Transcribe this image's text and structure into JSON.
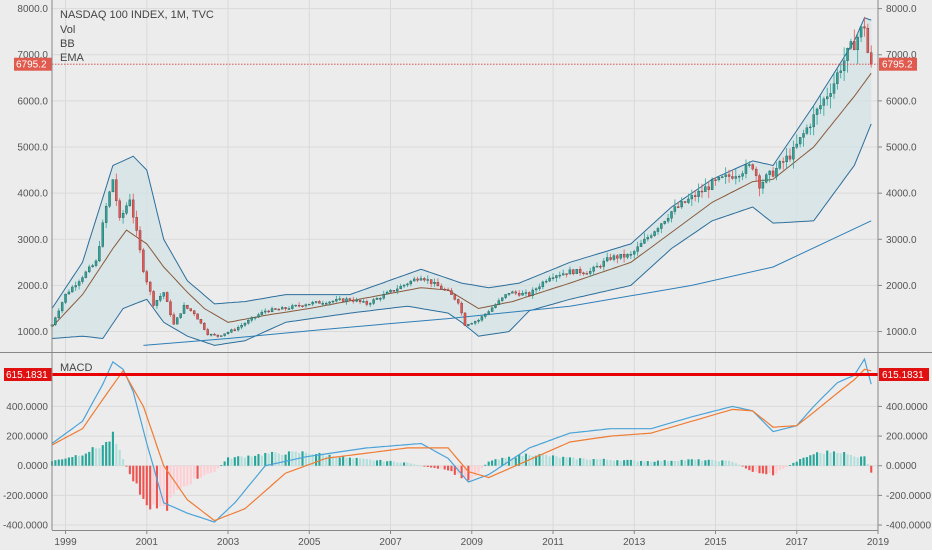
{
  "chart_data": [
    {
      "type": "candlestick",
      "title": "NASDAQ 100 INDEX, 1M, TVC",
      "legend": [
        "Vol",
        "BB",
        "EMA"
      ],
      "x_ticks": [
        "1999",
        "2001",
        "2003",
        "2005",
        "2007",
        "2009",
        "2011",
        "2013",
        "2015",
        "2017",
        "2019"
      ],
      "y_ticks": [
        "1000.0",
        "2000.0",
        "3000.0",
        "4000.0",
        "5000.0",
        "6000.0",
        "7000.0",
        "8000.0"
      ],
      "ylim": [
        600,
        8100
      ],
      "price_label": "6795.2",
      "price_value": 6795.2,
      "colors": {
        "up": "#26a69a",
        "down": "#ef5350",
        "ema": "#8b5a3c",
        "bb": "#2d6e9b",
        "bb_fill": "#d2e3e5",
        "long_ma": "#2d7fb8"
      },
      "candle_keypoints": [
        [
          "1998-09",
          1150
        ],
        [
          "1999-01",
          1800
        ],
        [
          "1999-06",
          2200
        ],
        [
          "1999-10",
          2500
        ],
        [
          "2000-01",
          3700
        ],
        [
          "2000-03",
          4300
        ],
        [
          "2000-05",
          3400
        ],
        [
          "2000-08",
          3900
        ],
        [
          "2000-12",
          2350
        ],
        [
          "2001-03",
          1600
        ],
        [
          "2001-06",
          1850
        ],
        [
          "2001-09",
          1150
        ],
        [
          "2001-12",
          1550
        ],
        [
          "2002-03",
          1400
        ],
        [
          "2002-07",
          950
        ],
        [
          "2002-10",
          900
        ],
        [
          "2003-03",
          1050
        ],
        [
          "2003-12",
          1450
        ],
        [
          "2004-06",
          1500
        ],
        [
          "2004-12",
          1600
        ],
        [
          "2006-01",
          1700
        ],
        [
          "2006-06",
          1600
        ],
        [
          "2007-10",
          2200
        ],
        [
          "2008-06",
          1850
        ],
        [
          "2008-09",
          1650
        ],
        [
          "2008-11",
          1150
        ],
        [
          "2009-03",
          1250
        ],
        [
          "2009-12",
          1850
        ],
        [
          "2010-06",
          1800
        ],
        [
          "2010-12",
          2200
        ],
        [
          "2011-06",
          2300
        ],
        [
          "2011-12",
          2300
        ],
        [
          "2012-06",
          2600
        ],
        [
          "2012-12",
          2650
        ],
        [
          "2013-12",
          3600
        ],
        [
          "2014-12",
          4200
        ],
        [
          "2015-06",
          4400
        ],
        [
          "2015-12",
          4600
        ],
        [
          "2016-02",
          4200
        ],
        [
          "2016-06",
          4450
        ],
        [
          "2016-12",
          4900
        ],
        [
          "2017-12",
          6400
        ],
        [
          "2018-02",
          6750
        ],
        [
          "2018-09",
          7650
        ],
        [
          "2018-10",
          7050
        ],
        [
          "2018-11",
          6795
        ]
      ],
      "bb_upper_keypoints": [
        [
          "1998-09",
          1500
        ],
        [
          "1999-06",
          2500
        ],
        [
          "2000-03",
          4600
        ],
        [
          "2000-09",
          4800
        ],
        [
          "2001-01",
          4500
        ],
        [
          "2001-06",
          3000
        ],
        [
          "2002-01",
          2100
        ],
        [
          "2002-09",
          1600
        ],
        [
          "2003-06",
          1650
        ],
        [
          "2004-06",
          1800
        ],
        [
          "2006-01",
          1800
        ],
        [
          "2007-10",
          2350
        ],
        [
          "2008-06",
          2150
        ],
        [
          "2008-10",
          2050
        ],
        [
          "2009-06",
          1950
        ],
        [
          "2010-03",
          2050
        ],
        [
          "2011-06",
          2500
        ],
        [
          "2012-12",
          2900
        ],
        [
          "2013-12",
          3700
        ],
        [
          "2014-12",
          4300
        ],
        [
          "2015-12",
          4700
        ],
        [
          "2016-06",
          4600
        ],
        [
          "2017-06",
          5900
        ],
        [
          "2018-06",
          7300
        ],
        [
          "2018-09",
          7800
        ],
        [
          "2018-11",
          7750
        ]
      ],
      "bb_lower_keypoints": [
        [
          "1998-09",
          850
        ],
        [
          "1999-06",
          900
        ],
        [
          "1999-12",
          850
        ],
        [
          "2000-06",
          1500
        ],
        [
          "2001-01",
          1700
        ],
        [
          "2001-06",
          1200
        ],
        [
          "2002-01",
          900
        ],
        [
          "2002-09",
          700
        ],
        [
          "2003-06",
          800
        ],
        [
          "2004-06",
          1200
        ],
        [
          "2006-01",
          1400
        ],
        [
          "2007-06",
          1550
        ],
        [
          "2008-06",
          1400
        ],
        [
          "2008-10",
          1200
        ],
        [
          "2009-03",
          900
        ],
        [
          "2009-12",
          1000
        ],
        [
          "2010-06",
          1450
        ],
        [
          "2011-06",
          1700
        ],
        [
          "2012-12",
          2000
        ],
        [
          "2013-12",
          2800
        ],
        [
          "2014-12",
          3400
        ],
        [
          "2015-12",
          3700
        ],
        [
          "2016-06",
          3350
        ],
        [
          "2017-06",
          3400
        ],
        [
          "2018-06",
          4600
        ],
        [
          "2018-11",
          5500
        ]
      ],
      "ema_keypoints": [
        [
          "1998-09",
          1100
        ],
        [
          "1999-06",
          1800
        ],
        [
          "2000-03",
          2800
        ],
        [
          "2000-07",
          3200
        ],
        [
          "2001-01",
          2900
        ],
        [
          "2001-06",
          2400
        ],
        [
          "2002-01",
          1850
        ],
        [
          "2002-06",
          1500
        ],
        [
          "2003-01",
          1200
        ],
        [
          "2003-12",
          1350
        ],
        [
          "2005-01",
          1500
        ],
        [
          "2007-10",
          1950
        ],
        [
          "2008-06",
          1900
        ],
        [
          "2009-03",
          1500
        ],
        [
          "2010-01",
          1650
        ],
        [
          "2011-06",
          2050
        ],
        [
          "2012-12",
          2500
        ],
        [
          "2013-12",
          3150
        ],
        [
          "2014-12",
          3800
        ],
        [
          "2015-12",
          4250
        ],
        [
          "2016-06",
          4300
        ],
        [
          "2017-06",
          5000
        ],
        [
          "2018-06",
          6100
        ],
        [
          "2018-11",
          6600
        ]
      ],
      "long_ma_keypoints": [
        [
          "2000-12",
          700
        ],
        [
          "2003-01",
          850
        ],
        [
          "2005-06",
          1050
        ],
        [
          "2008-06",
          1280
        ],
        [
          "2011-06",
          1550
        ],
        [
          "2014-06",
          2000
        ],
        [
          "2016-06",
          2400
        ],
        [
          "2018-11",
          3400
        ]
      ]
    },
    {
      "type": "macd",
      "title": "MACD",
      "x_ticks": [
        "1999",
        "2001",
        "2003",
        "2005",
        "2007",
        "2009",
        "2011",
        "2013",
        "2015",
        "2017",
        "2019"
      ],
      "y_ticks": [
        "400.0000",
        "200.0000",
        "0.0000",
        "-200.0000",
        "-400.0000"
      ],
      "ylim": [
        -420,
        740
      ],
      "level_label": "615.1831",
      "level_value": 615.1831,
      "colors": {
        "macd": "#4ba3d8",
        "signal": "#f07c34",
        "level": "#e80000",
        "hist_pos_strong": "#26a69a",
        "hist_pos_weak": "#b2dfdb",
        "hist_neg_strong": "#ef5350",
        "hist_neg_weak": "#ffcdd2"
      },
      "macd_keypoints": [
        [
          "1998-09",
          150
        ],
        [
          "1999-06",
          300
        ],
        [
          "1999-12",
          550
        ],
        [
          "2000-03",
          700
        ],
        [
          "2000-06",
          650
        ],
        [
          "2000-09",
          500
        ],
        [
          "2001-01",
          150
        ],
        [
          "2001-06",
          -250
        ],
        [
          "2002-01",
          -320
        ],
        [
          "2002-09",
          -380
        ],
        [
          "2003-03",
          -250
        ],
        [
          "2003-12",
          0
        ],
        [
          "2004-12",
          60
        ],
        [
          "2006-06",
          120
        ],
        [
          "2007-10",
          150
        ],
        [
          "2008-06",
          50
        ],
        [
          "2008-12",
          -110
        ],
        [
          "2009-06",
          -60
        ],
        [
          "2010-06",
          120
        ],
        [
          "2011-06",
          220
        ],
        [
          "2012-06",
          250
        ],
        [
          "2013-06",
          250
        ],
        [
          "2014-06",
          330
        ],
        [
          "2015-06",
          400
        ],
        [
          "2015-12",
          370
        ],
        [
          "2016-06",
          230
        ],
        [
          "2017-01",
          270
        ],
        [
          "2017-06",
          400
        ],
        [
          "2018-01",
          560
        ],
        [
          "2018-06",
          610
        ],
        [
          "2018-09",
          720
        ],
        [
          "2018-11",
          550
        ]
      ],
      "signal_keypoints": [
        [
          "1998-09",
          140
        ],
        [
          "1999-06",
          250
        ],
        [
          "2000-01",
          480
        ],
        [
          "2000-06",
          640
        ],
        [
          "2000-12",
          400
        ],
        [
          "2001-06",
          0
        ],
        [
          "2002-01",
          -230
        ],
        [
          "2002-09",
          -370
        ],
        [
          "2003-06",
          -290
        ],
        [
          "2004-06",
          -50
        ],
        [
          "2005-06",
          50
        ],
        [
          "2007-06",
          120
        ],
        [
          "2008-06",
          120
        ],
        [
          "2008-12",
          -40
        ],
        [
          "2009-06",
          -80
        ],
        [
          "2010-06",
          40
        ],
        [
          "2011-06",
          160
        ],
        [
          "2012-06",
          200
        ],
        [
          "2013-06",
          220
        ],
        [
          "2014-06",
          300
        ],
        [
          "2015-06",
          380
        ],
        [
          "2015-12",
          370
        ],
        [
          "2016-06",
          260
        ],
        [
          "2017-01",
          270
        ],
        [
          "2017-06",
          360
        ],
        [
          "2018-01",
          490
        ],
        [
          "2018-06",
          580
        ],
        [
          "2018-09",
          650
        ],
        [
          "2018-11",
          640
        ]
      ],
      "hist_keypoints": [
        [
          "1998-09",
          30
        ],
        [
          "1999-06",
          80
        ],
        [
          "2000-01",
          150
        ],
        [
          "2000-03",
          200
        ],
        [
          "2000-06",
          40
        ],
        [
          "2000-09",
          -100
        ],
        [
          "2001-01",
          -250
        ],
        [
          "2001-06",
          -310
        ],
        [
          "2001-09",
          -200
        ],
        [
          "2002-01",
          -120
        ],
        [
          "2002-09",
          -40
        ],
        [
          "2003-01",
          50
        ],
        [
          "2003-12",
          80
        ],
        [
          "2004-12",
          90
        ],
        [
          "2006-01",
          50
        ],
        [
          "2007-06",
          20
        ],
        [
          "2007-12",
          -10
        ],
        [
          "2008-06",
          -30
        ],
        [
          "2008-10",
          -80
        ],
        [
          "2009-01",
          -90
        ],
        [
          "2009-06",
          30
        ],
        [
          "2010-06",
          80
        ],
        [
          "2011-06",
          50
        ],
        [
          "2012-06",
          40
        ],
        [
          "2013-06",
          30
        ],
        [
          "2014-06",
          40
        ],
        [
          "2015-06",
          30
        ],
        [
          "2015-12",
          -40
        ],
        [
          "2016-06",
          -60
        ],
        [
          "2017-01",
          30
        ],
        [
          "2017-06",
          80
        ],
        [
          "2018-01",
          100
        ],
        [
          "2018-06",
          60
        ],
        [
          "2018-09",
          70
        ],
        [
          "2018-11",
          -50
        ]
      ]
    }
  ]
}
